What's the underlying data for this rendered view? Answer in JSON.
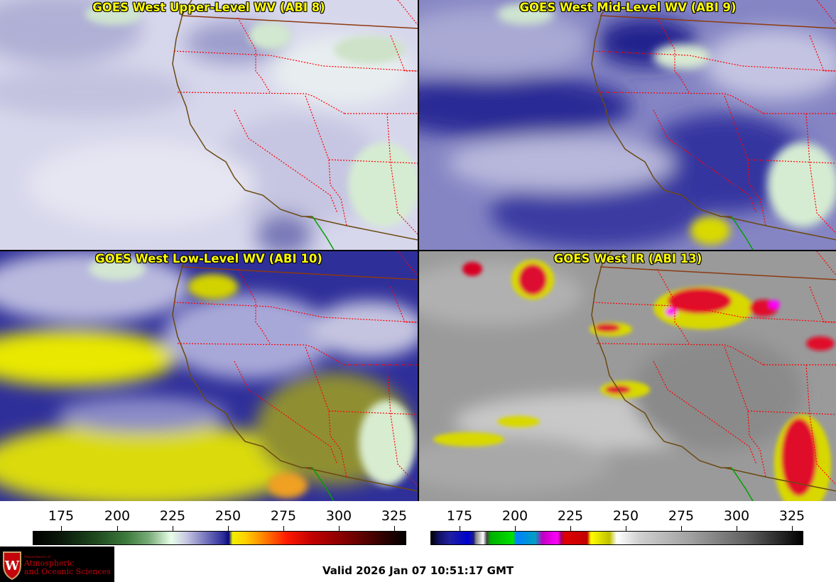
{
  "panels": {
    "upper": {
      "title": "GOES West Upper-Level WV (ABI 8)"
    },
    "mid": {
      "title": "GOES West Mid-Level WV (ABI 9)"
    },
    "low": {
      "title": "GOES West Low-Level WV (ABI 10)"
    },
    "ir": {
      "title": "GOES West IR (ABI 13)"
    }
  },
  "colorbars": {
    "wv": {
      "ticks": [
        "175",
        "200",
        "225",
        "250",
        "275",
        "300",
        "325"
      ]
    },
    "ir": {
      "ticks": [
        "175",
        "200",
        "225",
        "250",
        "275",
        "300",
        "325"
      ]
    }
  },
  "logo": {
    "line1": "Department of",
    "line2": "Atmospheric",
    "line3": "and Oceanic Sciences"
  },
  "footer": {
    "valid": "Valid 2026 Jan 07 10:51:17 GMT"
  },
  "colors": {
    "border_state": "#ff0000",
    "coastline": "#6b4a10",
    "border_country": "#8b3a10",
    "mexico_border": "#00a000",
    "title": "#ffff00"
  }
}
